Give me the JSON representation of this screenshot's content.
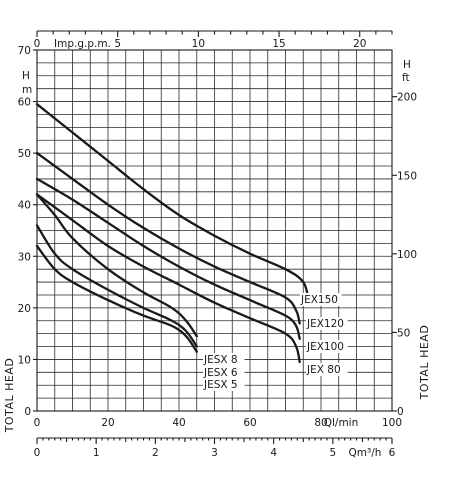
{
  "chart_data": {
    "type": "line",
    "title": "",
    "grid": true,
    "legend": "labels on curves",
    "axes": {
      "x_bottom_flow_lmin": {
        "label": "Ql/min",
        "range": [
          0,
          100
        ],
        "ticks": [
          0,
          20,
          40,
          60,
          80,
          100
        ],
        "tick_labels": [
          "0",
          "20",
          "40",
          "60",
          "80",
          "100"
        ]
      },
      "x_bottom_flow_m3h": {
        "label": "Qm³/h",
        "range": [
          0,
          6
        ],
        "ticks": [
          0,
          1,
          2,
          3,
          4,
          5,
          6
        ],
        "tick_labels": [
          "0",
          "1",
          "2",
          "3",
          "4",
          "5",
          "6"
        ]
      },
      "x_top_flow_impgpm": {
        "label": "Imp.g.p.m.",
        "range": [
          0,
          22
        ],
        "ticks": [
          0,
          5,
          10,
          15,
          20
        ],
        "tick_labels": [
          "0",
          "5",
          "10",
          "15",
          "20"
        ]
      },
      "y_left_head_m": {
        "unit_symbol": "H",
        "unit": "m",
        "title": "TOTAL HEAD",
        "range": [
          0,
          70
        ],
        "ticks": [
          0,
          10,
          20,
          30,
          40,
          50,
          60,
          70
        ],
        "tick_labels": [
          "0",
          "10",
          "20",
          "30",
          "40",
          "50",
          "60",
          "70"
        ]
      },
      "y_right_head_ft": {
        "unit_symbol": "H",
        "unit": "ft",
        "title": "TOTAL HEAD",
        "range": [
          0,
          229.7
        ],
        "ticks": [
          0,
          50,
          100,
          150,
          200
        ],
        "tick_labels": [
          "0",
          "50",
          "100",
          "150",
          "200"
        ]
      }
    },
    "series": [
      {
        "name": "JEX150",
        "x": [
          0,
          10,
          20,
          30,
          40,
          50,
          60,
          70,
          75,
          76.5
        ],
        "y": [
          59.5,
          54,
          48.5,
          43,
          38,
          34,
          30.5,
          27.5,
          25,
          21.5
        ]
      },
      {
        "name": "JEX120",
        "x": [
          0,
          10,
          20,
          30,
          40,
          50,
          60,
          70,
          73,
          74
        ],
        "y": [
          50,
          45,
          40,
          35.5,
          31.5,
          28,
          25,
          22,
          19.5,
          17
        ]
      },
      {
        "name": "JEX100",
        "x": [
          0,
          10,
          20,
          30,
          40,
          50,
          60,
          70,
          73,
          74
        ],
        "y": [
          45,
          41,
          36.5,
          32,
          28,
          24.5,
          21.5,
          18.5,
          16.5,
          14
        ]
      },
      {
        "name": "JEX 80",
        "x": [
          0,
          10,
          20,
          30,
          40,
          50,
          60,
          70,
          73,
          74
        ],
        "y": [
          42,
          37,
          32,
          28,
          24.5,
          21,
          18,
          15,
          12.5,
          9.5
        ]
      },
      {
        "name": "JESX 8",
        "x": [
          0,
          5,
          10,
          20,
          30,
          38,
          42,
          45
        ],
        "y": [
          42,
          38,
          33.5,
          27.5,
          23,
          20,
          17.5,
          14.5
        ]
      },
      {
        "name": "JESX 6",
        "x": [
          0,
          5,
          10,
          20,
          30,
          38,
          42,
          45
        ],
        "y": [
          36,
          30.5,
          27.5,
          23.5,
          20,
          17.5,
          15.5,
          12.5
        ]
      },
      {
        "name": "JESX 5",
        "x": [
          0,
          5,
          10,
          20,
          30,
          38,
          42,
          45
        ],
        "y": [
          32,
          27.5,
          25,
          21.5,
          18.5,
          16.5,
          14.5,
          11.5
        ]
      }
    ],
    "series_labels": [
      "JEX150",
      "JEX120",
      "JEX100",
      "JEX 80",
      "JESX 8",
      "JESX 6",
      "JESX 5"
    ]
  }
}
